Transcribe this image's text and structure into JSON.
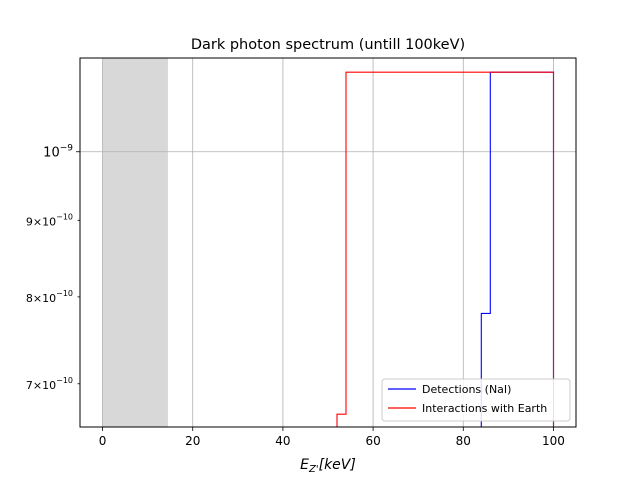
{
  "chart_data": {
    "type": "line",
    "title": "Dark photon spectrum (untill 100keV)",
    "xlabel": "E_{Z'}[keV]",
    "ylabel": "",
    "xlim": [
      -5,
      105
    ],
    "ylim": [
      6.55e-10,
      1.155e-09
    ],
    "yscale": "log",
    "grid": true,
    "legend_position": "lower-right",
    "x_ticks": [
      {
        "value": 0,
        "label": "0"
      },
      {
        "value": 20,
        "label": "20"
      },
      {
        "value": 40,
        "label": "40"
      },
      {
        "value": 60,
        "label": "60"
      },
      {
        "value": 80,
        "label": "80"
      },
      {
        "value": 100,
        "label": "100"
      }
    ],
    "y_ticks": [
      {
        "value": 1e-09,
        "mantissa": "",
        "exponent": "−9",
        "major": true
      },
      {
        "value": 9e-10,
        "mantissa": "9",
        "exponent": "−10",
        "major": false
      },
      {
        "value": 8e-10,
        "mantissa": "8",
        "exponent": "−10",
        "major": false
      },
      {
        "value": 7e-10,
        "mantissa": "7",
        "exponent": "−10",
        "major": false
      }
    ],
    "shaded_region": {
      "x_start": 0,
      "x_end": 14.5,
      "color": "#d8d8d8"
    },
    "series": [
      {
        "name": "Detections (NaI)",
        "color": "#0000ff",
        "x": [
          84,
          84,
          86,
          86,
          100,
          100
        ],
        "y": [
          6.5e-10,
          7.8e-10,
          7.8e-10,
          1.13e-09,
          1.13e-09,
          6.5e-10
        ]
      },
      {
        "name": "Interactions with Earth",
        "color": "#ff0000",
        "x": [
          52,
          52,
          54,
          54,
          100,
          100
        ],
        "y": [
          6.5e-10,
          6.68e-10,
          6.68e-10,
          1.13e-09,
          1.13e-09,
          6.5e-10
        ]
      }
    ]
  }
}
